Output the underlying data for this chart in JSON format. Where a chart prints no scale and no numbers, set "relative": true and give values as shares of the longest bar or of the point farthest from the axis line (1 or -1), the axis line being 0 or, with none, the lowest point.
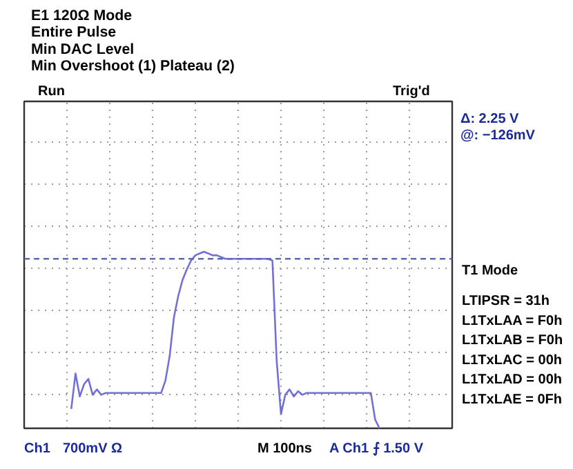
{
  "chart_data": {
    "type": "line",
    "relative": true,
    "title": "E1 120Ω Mode",
    "subtitle": "Entire Pulse\nMin DAC Level\nMin Overshoot (1) Plateau (2)",
    "categories": [
      null,
      null,
      null,
      null,
      null,
      null,
      null,
      null,
      null,
      null,
      null,
      null,
      null,
      null,
      null,
      null,
      null,
      null,
      null,
      null,
      null,
      null,
      null,
      null,
      null,
      null,
      null,
      null,
      null,
      null,
      null,
      null,
      null,
      null,
      null,
      null,
      null,
      null,
      null,
      null,
      null,
      null,
      null,
      null,
      null,
      null,
      null,
      null,
      null,
      null,
      null,
      null,
      null,
      null,
      null,
      null,
      null,
      null,
      null,
      null,
      null,
      null,
      null,
      null,
      null,
      null,
      null,
      null,
      null,
      null,
      null,
      null,
      null,
      null,
      null,
      null,
      null,
      null,
      null,
      null,
      null,
      null,
      null,
      null,
      null,
      null,
      null,
      null,
      null,
      null,
      null,
      null,
      null,
      null,
      null,
      null,
      null,
      null,
      null,
      null,
      null
    ],
    "series": [
      {
        "color": "#7070d8",
        "values": [
          null,
          null,
          null,
          null,
          null,
          null,
          null,
          null,
          null,
          null,
          null,
          0.11,
          0.31,
          0.18,
          0.25,
          0.28,
          0.19,
          0.22,
          0.19,
          0.2,
          0.2,
          0.2,
          0.2,
          0.2,
          0.2,
          0.2,
          0.2,
          0.2,
          0.2,
          0.2,
          0.2,
          0.2,
          0.2,
          0.27,
          0.41,
          0.63,
          0.75,
          0.84,
          0.9,
          0.95,
          0.98,
          0.99,
          1.0,
          0.99,
          0.98,
          0.98,
          0.97,
          0.96,
          0.96,
          0.96,
          0.96,
          0.96,
          0.96,
          0.96,
          0.96,
          0.96,
          0.96,
          0.96,
          0.95,
          0.38,
          0.08,
          0.19,
          0.22,
          0.18,
          0.21,
          0.19,
          0.2,
          0.2,
          0.2,
          0.2,
          0.2,
          0.2,
          0.2,
          0.2,
          0.2,
          0.2,
          0.2,
          0.2,
          0.2,
          0.2,
          0.2,
          0.2,
          0.05,
          0,
          null,
          null,
          null,
          null,
          null,
          null,
          null,
          null,
          null,
          null,
          null,
          null,
          null,
          null,
          null,
          null,
          null
        ]
      }
    ],
    "ref_lines": [
      {
        "axis": "y",
        "value": 0.96,
        "color": "#5a6ab8",
        "line_style": "dashed"
      }
    ],
    "grid": true,
    "line_style": "solid",
    "annotations": [
      "Run",
      "Trig'd",
      "Δ:   2.25 V",
      "@:  −126mV",
      "T1 Mode",
      "LTIPSR   = 31h",
      "L1TxLAA = F0h",
      "L1TxLAB = F0h",
      "L1TxLAC = 00h",
      "L1TxLAD = 00h",
      "L1TxLAE = 0Fh",
      "Ch1",
      "700mV Ω",
      "M 100ns",
      "A  Ch1  ⨍   1.50 V"
    ]
  }
}
